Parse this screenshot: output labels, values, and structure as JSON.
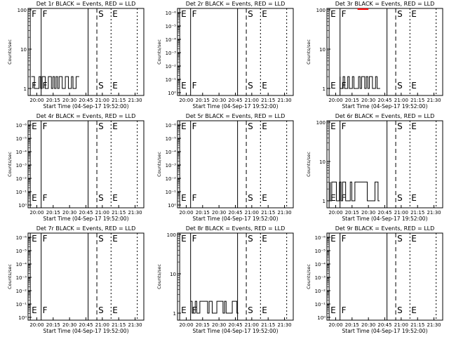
{
  "figure": {
    "background": "#ffffff",
    "foreground": "#000000",
    "lld_color": "#ff0000"
  },
  "chart_data": [
    {
      "type": "line",
      "title": "Det 1r BLACK = Events, RED = LLD",
      "xlabel": "Start Time (04-Sep-17 19:52:00)",
      "ylabel": "Counts/sec",
      "x_ticks": [
        "20:00",
        "20:15",
        "20:30",
        "20:45",
        "21:00",
        "21:15",
        "21:30"
      ],
      "y_scale": "log",
      "y_ticks": [
        "1",
        "10",
        "100"
      ],
      "flags": [
        {
          "label": "F",
          "time": "19:54"
        },
        {
          "label": "F",
          "time": "20:04"
        },
        {
          "label": "S",
          "time": "20:55"
        },
        {
          "label": "E",
          "time": "21:08"
        }
      ],
      "series": [
        {
          "color": "#000000",
          "data_time": [
            "19:55",
            "20:38"
          ],
          "values_range": [
            1,
            2
          ]
        }
      ]
    },
    {
      "type": "line",
      "title": "Det 2r BLACK = Events, RED = LLD",
      "xlabel": "Start Time (04-Sep-17 19:52:00)",
      "ylabel": "Counts/sec",
      "x_ticks": [
        "20:00",
        "20:15",
        "20:30",
        "20:45",
        "21:00",
        "21:15",
        "21:30"
      ],
      "y_scale": "log",
      "y_ticks": [
        "10⁰",
        "10⁻¹",
        "10⁻²",
        "10⁻³",
        "10⁻⁴",
        "10⁻⁵",
        "10⁻⁶"
      ],
      "flags": [
        {
          "label": "E",
          "time": "19:54"
        },
        {
          "label": "F",
          "time": "20:04"
        },
        {
          "label": "S",
          "time": "20:55"
        },
        {
          "label": "E",
          "time": "21:08"
        }
      ],
      "series": []
    },
    {
      "type": "line",
      "title": "Det 3r BLACK = Events, RED = LLD",
      "xlabel": "Start Time (04-Sep-17 19:52:00)",
      "ylabel": "Counts/sec",
      "x_ticks": [
        "20:00",
        "20:15",
        "20:30",
        "20:45",
        "21:00",
        "21:15",
        "21:30"
      ],
      "y_scale": "log",
      "y_ticks": [
        "1",
        "10",
        "100"
      ],
      "flags": [
        {
          "label": "E",
          "time": "19:54"
        },
        {
          "label": "F",
          "time": "20:04"
        },
        {
          "label": "S",
          "time": "20:55"
        },
        {
          "label": "E",
          "time": "21:08"
        }
      ],
      "series": [
        {
          "color": "#000000",
          "data_time": [
            "20:04",
            "20:40"
          ],
          "values_range": [
            1,
            2
          ]
        },
        {
          "color": "#ff0000",
          "data_time": [
            "20:20",
            "20:30"
          ],
          "values_range": [
            100,
            100
          ]
        }
      ]
    },
    {
      "type": "line",
      "title": "Det 4r BLACK = Events, RED = LLD",
      "xlabel": "Start Time (04-Sep-17 19:52:00)",
      "ylabel": "Counts/sec",
      "x_ticks": [
        "20:00",
        "20:15",
        "20:30",
        "20:45",
        "21:00",
        "21:15",
        "21:30"
      ],
      "y_scale": "log",
      "y_ticks": [
        "10⁰",
        "10⁻¹",
        "10⁻²",
        "10⁻³",
        "10⁻⁴",
        "10⁻⁵",
        "10⁻⁶"
      ],
      "flags": [
        {
          "label": "E",
          "time": "19:54"
        },
        {
          "label": "F",
          "time": "20:04"
        },
        {
          "label": "S",
          "time": "20:55"
        },
        {
          "label": "E",
          "time": "21:08"
        }
      ],
      "series": []
    },
    {
      "type": "line",
      "title": "Det 5r BLACK = Events, RED = LLD",
      "xlabel": "Start Time (04-Sep-17 19:52:00)",
      "ylabel": "Counts/sec",
      "x_ticks": [
        "20:00",
        "20:15",
        "20:30",
        "20:45",
        "21:00",
        "21:15",
        "21:30"
      ],
      "y_scale": "log",
      "y_ticks": [
        "10⁰",
        "10⁻¹",
        "10⁻²",
        "10⁻³",
        "10⁻⁴",
        "10⁻⁵",
        "10⁻⁶"
      ],
      "flags": [
        {
          "label": "E",
          "time": "19:54"
        },
        {
          "label": "F",
          "time": "20:04"
        },
        {
          "label": "S",
          "time": "20:55"
        },
        {
          "label": "E",
          "time": "21:08"
        }
      ],
      "series": []
    },
    {
      "type": "line",
      "title": "Det 6r BLACK = Events, RED = LLD",
      "xlabel": "Start Time (04-Sep-17 19:52:00)",
      "ylabel": "Counts/sec",
      "x_ticks": [
        "20:00",
        "20:15",
        "20:30",
        "20:45",
        "21:00",
        "21:15",
        "21:30"
      ],
      "y_scale": "log",
      "y_ticks": [
        "1",
        "10",
        "100"
      ],
      "flags": [
        {
          "label": "E",
          "time": "19:54"
        },
        {
          "label": "F",
          "time": "20:04"
        },
        {
          "label": "S",
          "time": "20:55"
        },
        {
          "label": "E",
          "time": "21:08"
        }
      ],
      "series": [
        {
          "color": "#000000",
          "data_time": [
            "19:55",
            "20:40"
          ],
          "values_range": [
            1,
            3
          ]
        }
      ]
    },
    {
      "type": "line",
      "title": "Det 7r BLACK = Events, RED = LLD",
      "xlabel": "Start Time (04-Sep-17 19:52:00)",
      "ylabel": "Counts/sec",
      "x_ticks": [
        "20:00",
        "20:15",
        "20:30",
        "20:45",
        "21:00",
        "21:15",
        "21:30"
      ],
      "y_scale": "log",
      "y_ticks": [
        "10⁰",
        "10⁻¹",
        "10⁻²",
        "10⁻³",
        "10⁻⁴",
        "10⁻⁵",
        "10⁻⁶"
      ],
      "flags": [
        {
          "label": "E",
          "time": "19:54"
        },
        {
          "label": "F",
          "time": "20:04"
        },
        {
          "label": "S",
          "time": "20:55"
        },
        {
          "label": "E",
          "time": "21:08"
        }
      ],
      "series": []
    },
    {
      "type": "line",
      "title": "Det 8r BLACK = Events, RED = LLD",
      "xlabel": "Start Time (04-Sep-17 19:52:00)",
      "ylabel": "Counts/sec",
      "x_ticks": [
        "20:00",
        "20:15",
        "20:30",
        "20:45",
        "21:00",
        "21:15",
        "21:30"
      ],
      "y_scale": "log",
      "y_ticks": [
        "1",
        "10",
        "100"
      ],
      "flags": [
        {
          "label": "E",
          "time": "19:54"
        },
        {
          "label": "F",
          "time": "20:04"
        },
        {
          "label": "S",
          "time": "20:55"
        },
        {
          "label": "E",
          "time": "21:08"
        }
      ],
      "series": [
        {
          "color": "#000000",
          "data_time": [
            "20:04",
            "20:47"
          ],
          "values_range": [
            1,
            2
          ]
        }
      ]
    },
    {
      "type": "line",
      "title": "Det 9r BLACK = Events, RED = LLD",
      "xlabel": "Start Time (04-Sep-17 19:52:00)",
      "ylabel": "Counts/sec",
      "x_ticks": [
        "20:00",
        "20:15",
        "20:30",
        "20:45",
        "21:00",
        "21:15",
        "21:30"
      ],
      "y_scale": "log",
      "y_ticks": [
        "10⁰",
        "10⁻¹",
        "10⁻²",
        "10⁻³",
        "10⁻⁴",
        "10⁻⁵",
        "10⁻⁶"
      ],
      "flags": [
        {
          "label": "E",
          "time": "19:54"
        },
        {
          "label": "F",
          "time": "20:04"
        },
        {
          "label": "S",
          "time": "20:55"
        },
        {
          "label": "E",
          "time": "21:08"
        }
      ],
      "series": []
    }
  ]
}
